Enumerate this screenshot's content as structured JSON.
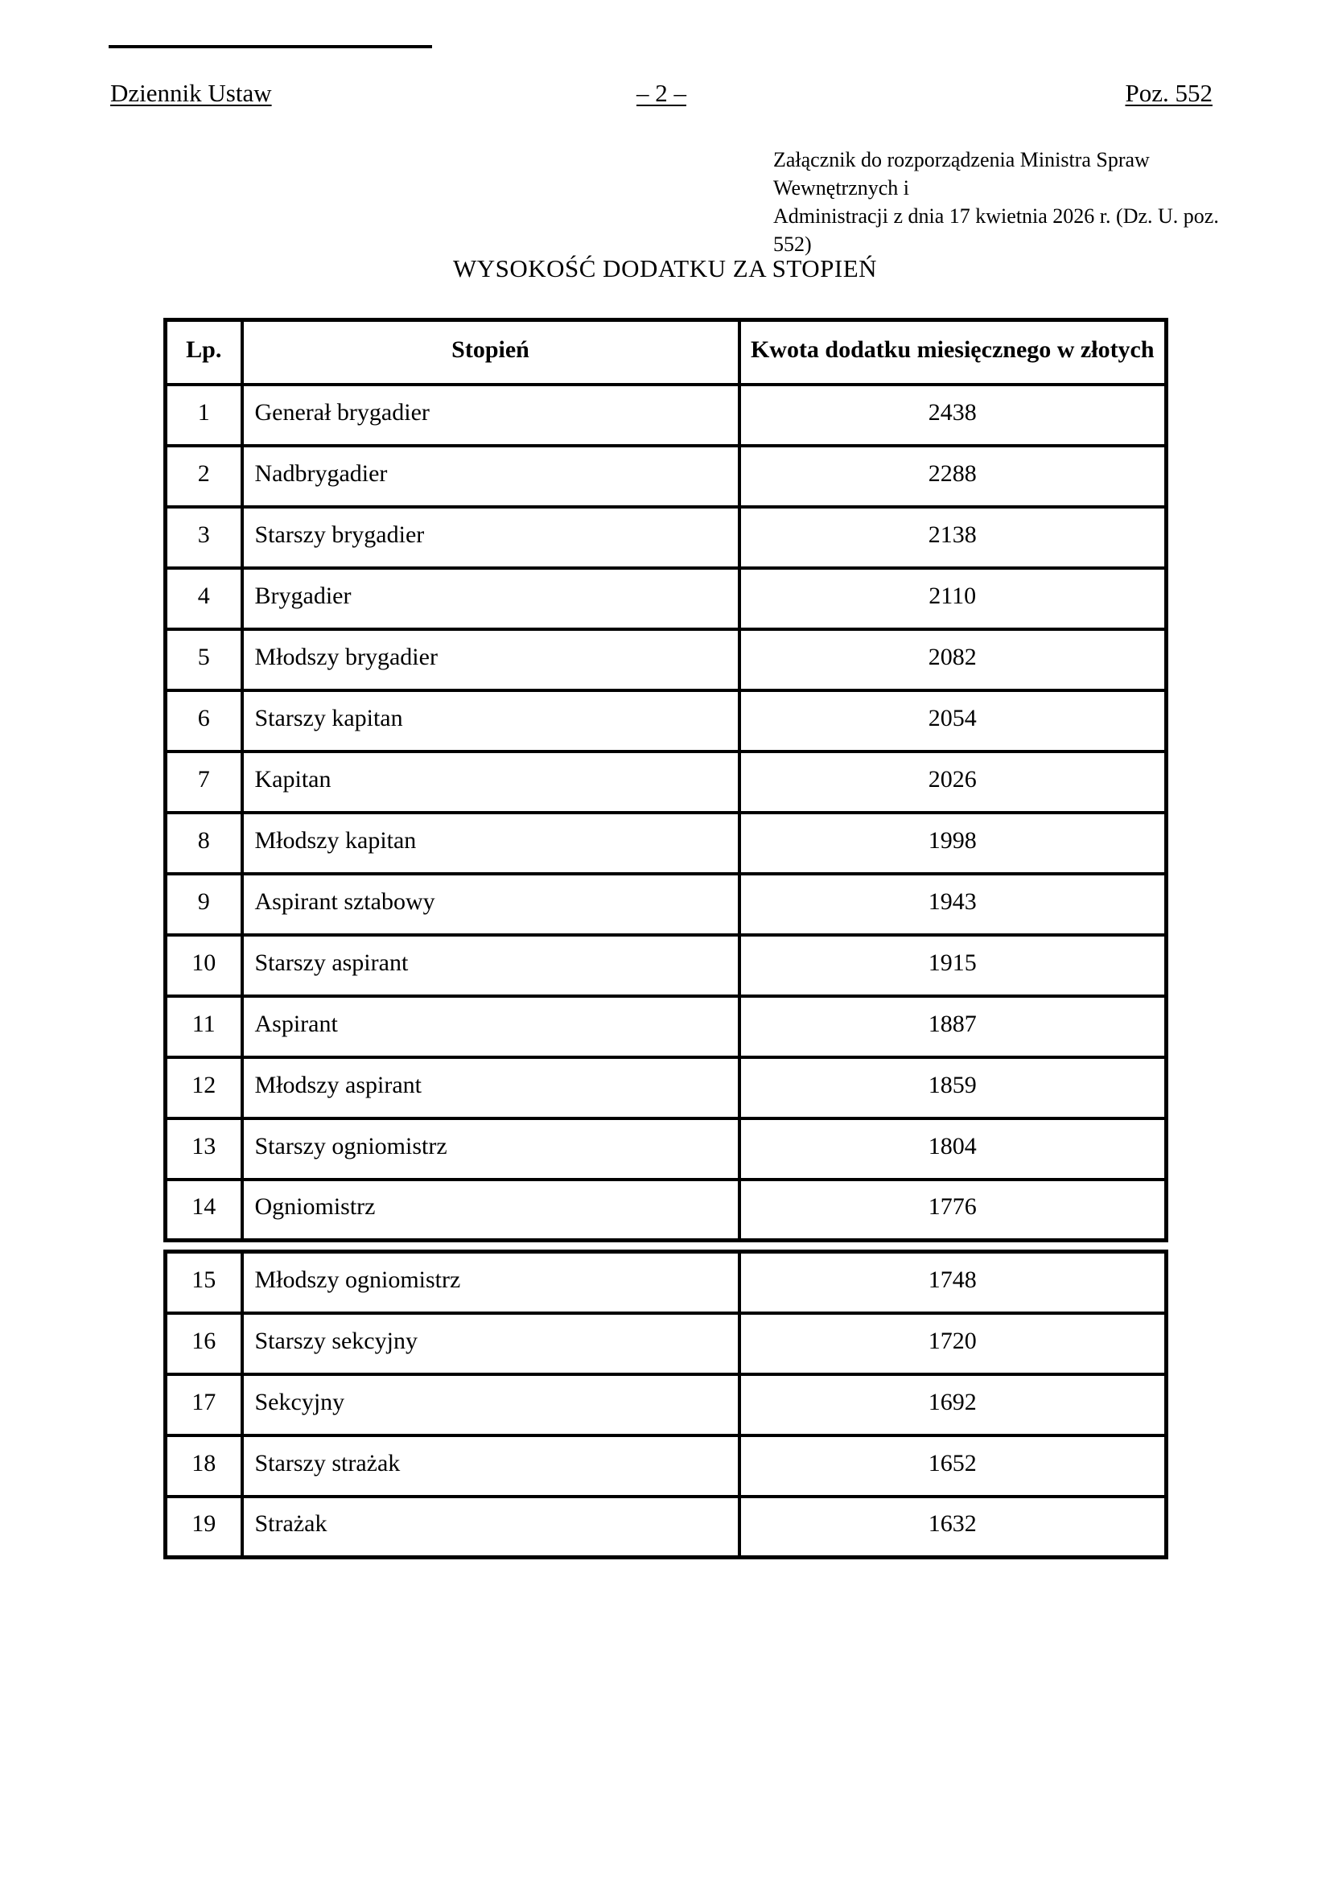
{
  "header": {
    "journal": "Dziennik Ustaw",
    "page_marker": "– 2 –",
    "poz": "Poz. 552"
  },
  "attachment_note": {
    "line1": "Załącznik do rozporządzenia Ministra Spraw Wewnętrznych i",
    "line2": "Administracji z dnia 17 kwietnia 2026 r. (Dz. U. poz. 552)"
  },
  "title": "WYSOKOŚĆ DODATKU ZA STOPIEŃ",
  "table": {
    "columns": [
      "Lp.",
      "Stopień",
      "Kwota dodatku miesięcznego w złotych"
    ],
    "split_after": 14,
    "rows": [
      {
        "lp": "1",
        "rank": "Generał brygadier",
        "amount": "2438"
      },
      {
        "lp": "2",
        "rank": "Nadbrygadier",
        "amount": "2288"
      },
      {
        "lp": "3",
        "rank": "Starszy brygadier",
        "amount": "2138"
      },
      {
        "lp": "4",
        "rank": "Brygadier",
        "amount": "2110"
      },
      {
        "lp": "5",
        "rank": "Młodszy brygadier",
        "amount": "2082"
      },
      {
        "lp": "6",
        "rank": "Starszy kapitan",
        "amount": "2054"
      },
      {
        "lp": "7",
        "rank": "Kapitan",
        "amount": "2026"
      },
      {
        "lp": "8",
        "rank": "Młodszy kapitan",
        "amount": "1998"
      },
      {
        "lp": "9",
        "rank": "Aspirant sztabowy",
        "amount": "1943"
      },
      {
        "lp": "10",
        "rank": "Starszy aspirant",
        "amount": "1915"
      },
      {
        "lp": "11",
        "rank": "Aspirant",
        "amount": "1887"
      },
      {
        "lp": "12",
        "rank": "Młodszy aspirant",
        "amount": "1859"
      },
      {
        "lp": "13",
        "rank": "Starszy ogniomistrz",
        "amount": "1804"
      },
      {
        "lp": "14",
        "rank": "Ogniomistrz",
        "amount": "1776"
      },
      {
        "lp": "15",
        "rank": "Młodszy ogniomistrz",
        "amount": "1748"
      },
      {
        "lp": "16",
        "rank": "Starszy sekcyjny",
        "amount": "1720"
      },
      {
        "lp": "17",
        "rank": "Sekcyjny",
        "amount": "1692"
      },
      {
        "lp": "18",
        "rank": "Starszy strażak",
        "amount": "1652"
      },
      {
        "lp": "19",
        "rank": "Strażak",
        "amount": "1632"
      }
    ]
  }
}
